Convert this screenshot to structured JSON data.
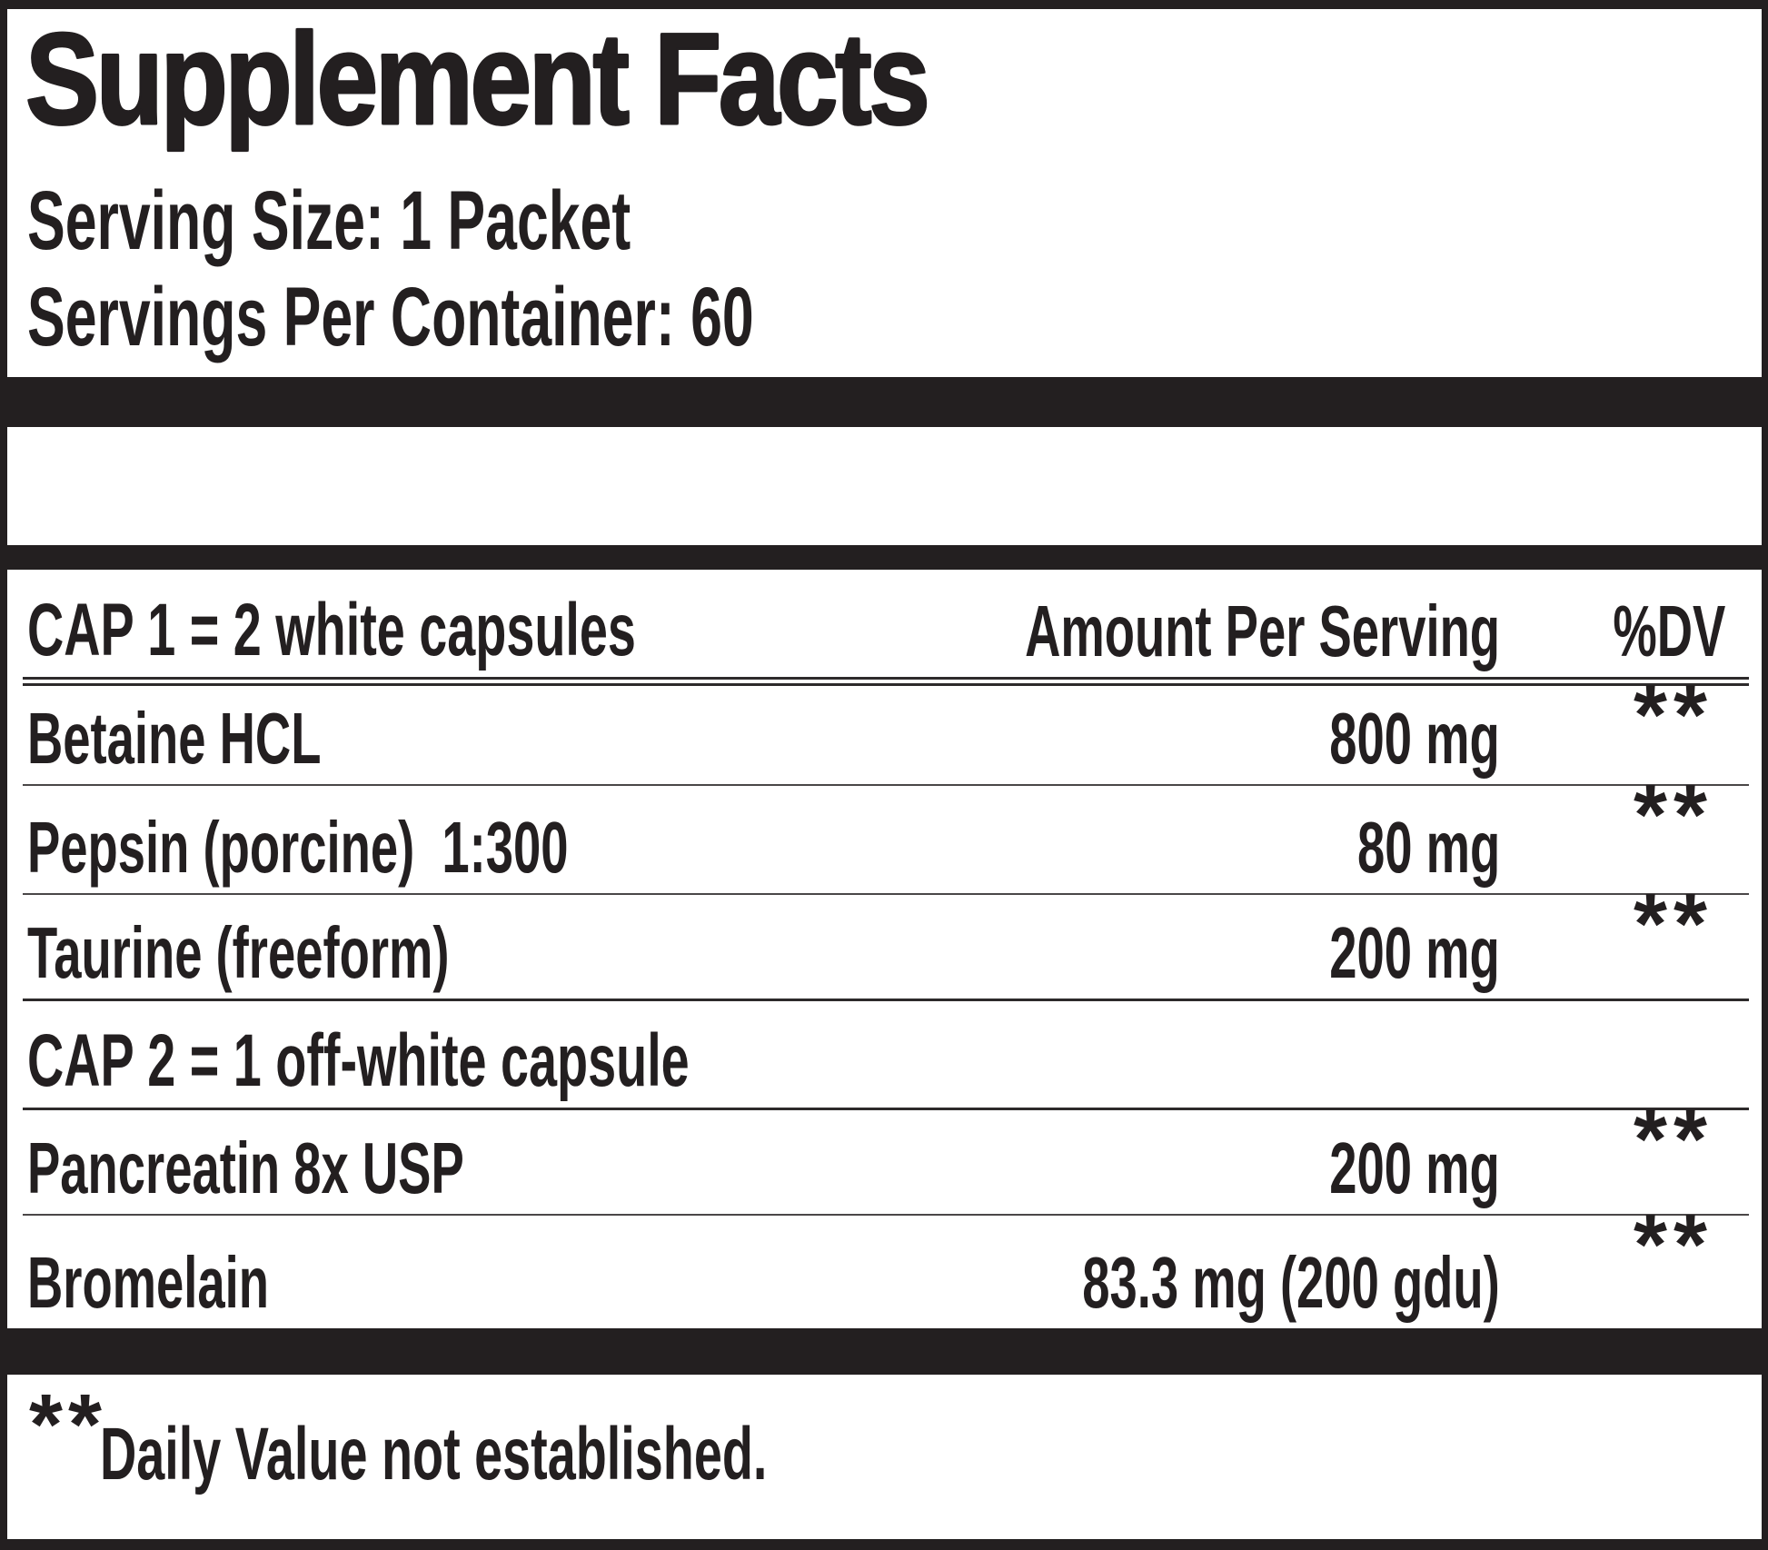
{
  "title": "Supplement Facts",
  "serving": {
    "size": "Serving Size: 1 Packet",
    "per_container": "Servings Per Container: 60"
  },
  "table": {
    "columns": {
      "amount": "Amount Per Serving",
      "dv": "%DV"
    },
    "sections": [
      {
        "heading": "CAP 1 = 2 white capsules",
        "rows": [
          {
            "name": "Betaine HCL",
            "amount": "800 mg",
            "dv": "**"
          },
          {
            "name": "Pepsin (porcine)  1:300",
            "amount": "80 mg",
            "dv": "**"
          },
          {
            "name": "Taurine (freeform)",
            "amount": "200 mg",
            "dv": "**"
          }
        ]
      },
      {
        "heading": "CAP 2 = 1 off-white capsule",
        "rows": [
          {
            "name": "Pancreatin 8x USP",
            "amount": "200 mg",
            "dv": "**"
          },
          {
            "name": "Bromelain",
            "amount": "83.3 mg (200 gdu)",
            "dv": "**"
          }
        ]
      }
    ]
  },
  "footnote": {
    "symbol": "**",
    "text": "Daily Value not established."
  },
  "colors": {
    "ink": "#231f20",
    "rule": "#4a4748",
    "background": "#ffffff"
  }
}
